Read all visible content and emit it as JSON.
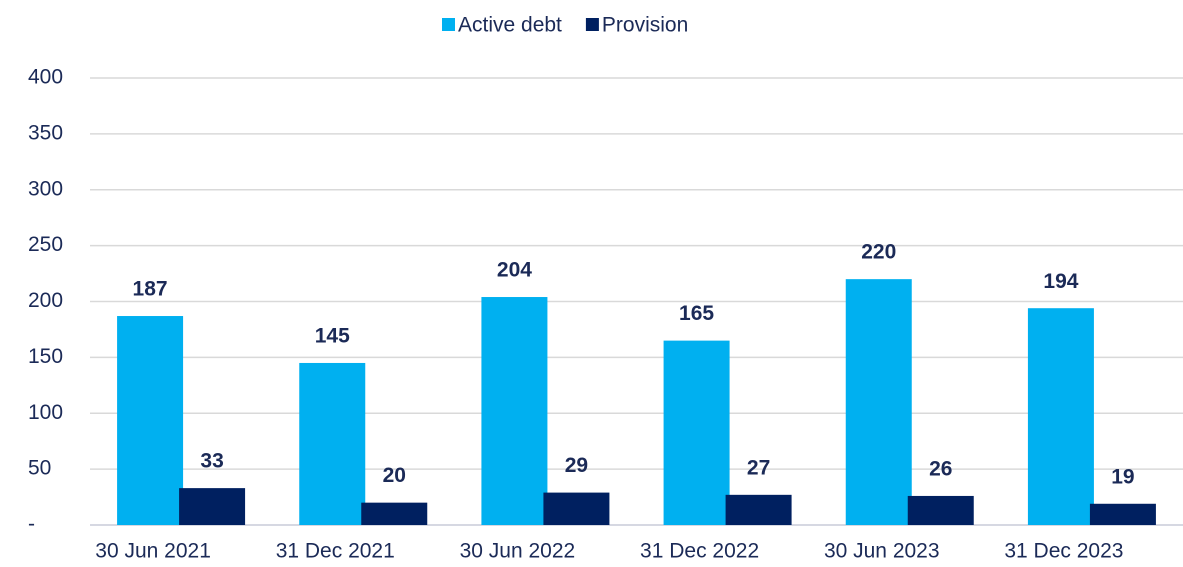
{
  "chart_data": {
    "type": "bar",
    "categories": [
      "30 Jun 2021",
      "31 Dec 2021",
      "30 Jun 2022",
      "31 Dec 2022",
      "30 Jun 2023",
      "31 Dec 2023"
    ],
    "series": [
      {
        "name": "Active debt",
        "color": "#00b0f0",
        "values": [
          187,
          145,
          204,
          165,
          220,
          194
        ]
      },
      {
        "name": "Provision",
        "color": "#002060",
        "values": [
          33,
          20,
          29,
          27,
          26,
          19
        ]
      }
    ],
    "ylim": [
      0,
      400
    ],
    "yticks": [
      {
        "value": 0,
        "label": "-"
      },
      50,
      100,
      150,
      200,
      250,
      300,
      350,
      400
    ],
    "grid": true,
    "legend": "top"
  }
}
